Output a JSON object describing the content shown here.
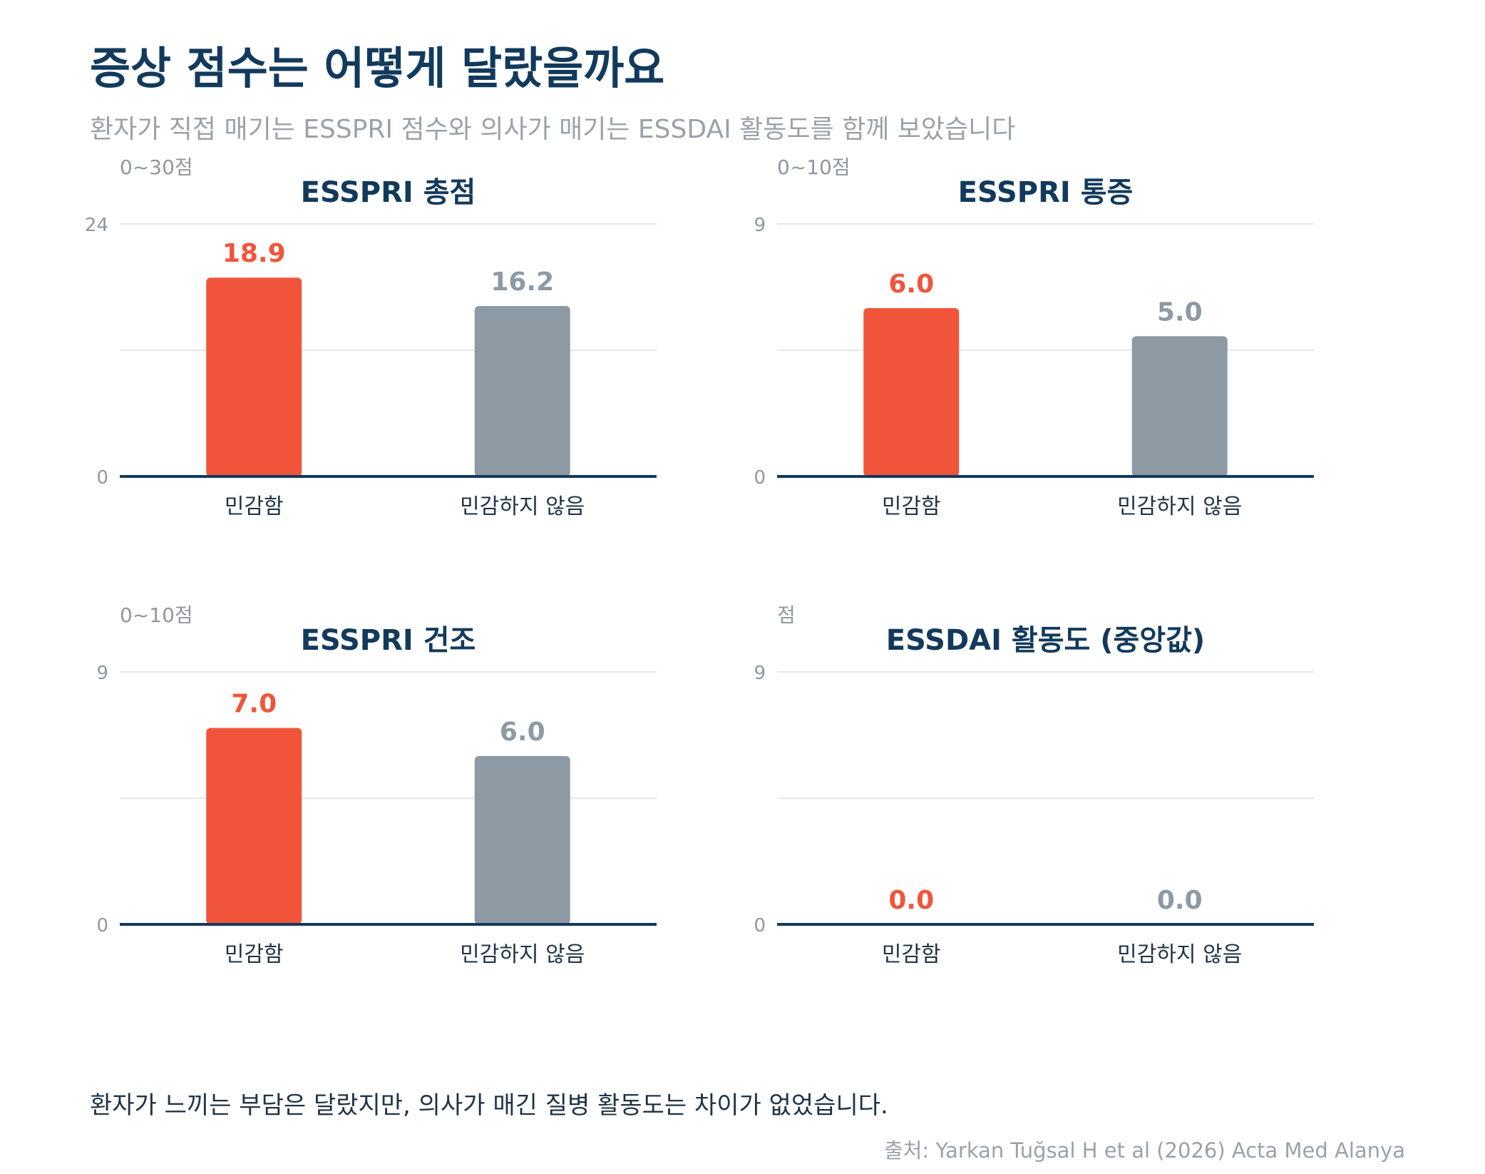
{
  "header": {
    "title": "증상 점수는 어떻게 달랐을까요",
    "subtitle": "환자가 직접 매기는 ESSPRI 점수와 의사가 매기는 ESSDAI 활동도를 함께 보았습니다"
  },
  "colors": {
    "sensitive": "#f0553b",
    "not_sensitive": "#8d9aa4",
    "axis": "#123a5c",
    "grid": "#e4e6e8"
  },
  "chart_data": [
    {
      "type": "bar",
      "title": "ESSPRI 총점",
      "ylabel": "0~30점",
      "ylim": [
        0,
        24
      ],
      "yticks": [
        0,
        24
      ],
      "categories": [
        "민감함",
        "민감하지 않음"
      ],
      "values": [
        18.9,
        16.2
      ],
      "value_labels": [
        "18.9",
        "16.2"
      ],
      "grid": true
    },
    {
      "type": "bar",
      "title": "ESSPRI 통증",
      "ylabel": "0~10점",
      "ylim": [
        0,
        9
      ],
      "yticks": [
        0,
        9
      ],
      "categories": [
        "민감함",
        "민감하지 않음"
      ],
      "values": [
        6.0,
        5.0
      ],
      "value_labels": [
        "6.0",
        "5.0"
      ],
      "grid": true
    },
    {
      "type": "bar",
      "title": "ESSPRI 건조",
      "ylabel": "0~10점",
      "ylim": [
        0,
        9
      ],
      "yticks": [
        0,
        9
      ],
      "categories": [
        "민감함",
        "민감하지 않음"
      ],
      "values": [
        7.0,
        6.0
      ],
      "value_labels": [
        "7.0",
        "6.0"
      ],
      "grid": true
    },
    {
      "type": "bar",
      "title": "ESSDAI 활동도 (중앙값)",
      "ylabel": "점",
      "ylim": [
        0,
        9
      ],
      "yticks": [
        0,
        9
      ],
      "categories": [
        "민감함",
        "민감하지 않음"
      ],
      "values": [
        0.0,
        0.0
      ],
      "value_labels": [
        "0.0",
        "0.0"
      ],
      "grid": true
    }
  ],
  "footer": {
    "note": "환자가 느끼는 부담은 달랐지만, 의사가 매긴 질병 활동도는 차이가 없었습니다.",
    "source": "출처: Yarkan Tuğsal H et al (2026) Acta Med Alanya"
  }
}
